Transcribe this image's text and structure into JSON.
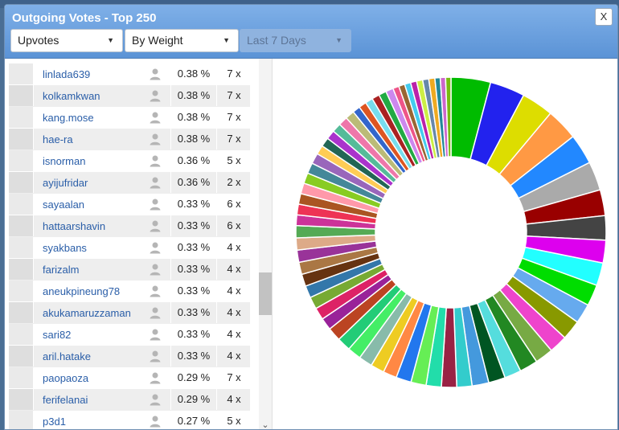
{
  "dialog": {
    "title": "Outgoing Votes - Top 250",
    "close_label": "X",
    "filters": {
      "type": "Upvotes",
      "mode": "By Weight",
      "period": "Last 7 Days"
    }
  },
  "rows": [
    {
      "name": "linlada639",
      "pct": "0.38 %",
      "count": "7 x"
    },
    {
      "name": "kolkamkwan",
      "pct": "0.38 %",
      "count": "7 x"
    },
    {
      "name": "kang.mose",
      "pct": "0.38 %",
      "count": "7 x"
    },
    {
      "name": "hae-ra",
      "pct": "0.38 %",
      "count": "7 x"
    },
    {
      "name": "isnorman",
      "pct": "0.36 %",
      "count": "5 x"
    },
    {
      "name": "ayijufridar",
      "pct": "0.36 %",
      "count": "2 x"
    },
    {
      "name": "sayaalan",
      "pct": "0.33 %",
      "count": "6 x"
    },
    {
      "name": "hattaarshavin",
      "pct": "0.33 %",
      "count": "6 x"
    },
    {
      "name": "syakbans",
      "pct": "0.33 %",
      "count": "4 x"
    },
    {
      "name": "farizalm",
      "pct": "0.33 %",
      "count": "4 x"
    },
    {
      "name": "aneukpineung78",
      "pct": "0.33 %",
      "count": "4 x"
    },
    {
      "name": "akukamaruzzaman",
      "pct": "0.33 %",
      "count": "4 x"
    },
    {
      "name": "sari82",
      "pct": "0.33 %",
      "count": "4 x"
    },
    {
      "name": "aril.hatake",
      "pct": "0.33 %",
      "count": "4 x"
    },
    {
      "name": "paopaoza",
      "pct": "0.29 %",
      "count": "7 x"
    },
    {
      "name": "ferifelanai",
      "pct": "0.29 %",
      "count": "4 x"
    },
    {
      "name": "p3d1",
      "pct": "0.27 %",
      "count": "5 x"
    }
  ],
  "chart_data": {
    "type": "pie",
    "donut": true,
    "values": [
      5.2,
      4.6,
      4.2,
      4.2,
      4.0,
      3.8,
      3.4,
      3.2,
      3.0,
      3.0,
      2.8,
      2.6,
      2.6,
      2.4,
      2.4,
      2.4,
      2.2,
      2.2,
      2.2,
      2.0,
      2.0,
      2.0,
      2.0,
      2.0,
      1.8,
      1.8,
      1.8,
      1.8,
      1.8,
      1.8,
      1.6,
      1.6,
      1.6,
      1.6,
      1.6,
      1.6,
      1.6,
      1.6,
      1.6,
      1.4,
      1.4,
      1.4,
      1.4,
      1.4,
      1.4,
      1.4,
      1.2,
      1.2,
      1.2,
      1.2,
      1.2,
      1.2,
      1.0,
      1.0,
      1.0,
      1.0,
      1.0,
      1.0,
      0.8,
      0.8,
      0.8,
      0.8,
      0.8,
      0.8,
      0.8,
      0.7,
      0.7,
      0.7
    ],
    "colors": [
      "#00bb00",
      "#2222ee",
      "#dddd00",
      "#ff9944",
      "#2288ff",
      "#aaaaaa",
      "#990000",
      "#444444",
      "#dd00ee",
      "#22ffff",
      "#00dd00",
      "#66aaee",
      "#889900",
      "#ee44cc",
      "#77aa44",
      "#228822",
      "#55dddd",
      "#005522",
      "#4499dd",
      "#33cccc",
      "#992244",
      "#22ddaa",
      "#66ee55",
      "#2277ee",
      "#ff8844",
      "#eecc22",
      "#88bbaa",
      "#44ee66",
      "#22cc77",
      "#bb4422",
      "#992299",
      "#dd2266",
      "#77aa33",
      "#3377aa",
      "#663311",
      "#aa7744",
      "#993399",
      "#ddaa88",
      "#55aa55",
      "#cc3399",
      "#ee3355",
      "#aa5522",
      "#ff99aa",
      "#88cc22",
      "#448899",
      "#9966bb",
      "#ffcc55",
      "#226655",
      "#aa33cc",
      "#55bb99",
      "#ee77aa",
      "#bbbb77",
      "#3366cc",
      "#dd5522",
      "#77ddee",
      "#aa2222",
      "#22aa44",
      "#cc88ee",
      "#ee5588",
      "#996633",
      "#44ccee",
      "#bb22aa",
      "#ccee44",
      "#6688aa",
      "#eeaa22",
      "#228899",
      "#cc66cc",
      "#77bb11"
    ]
  }
}
